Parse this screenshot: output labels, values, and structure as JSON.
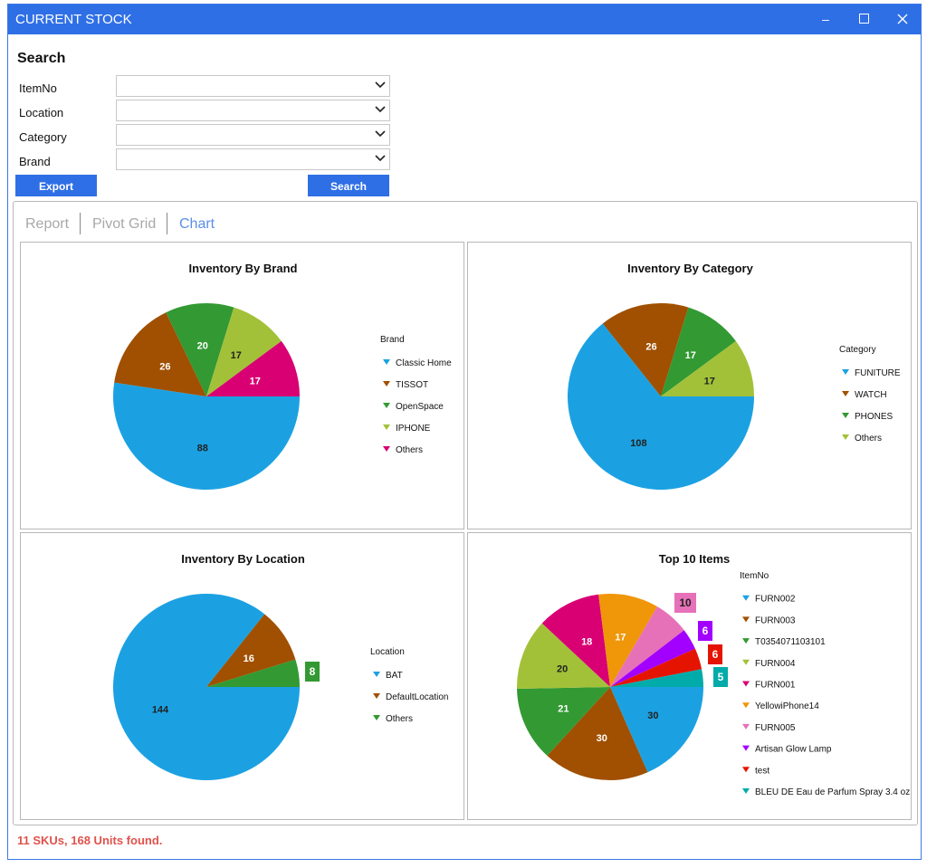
{
  "window": {
    "title": "CURRENT STOCK",
    "title_color": "#2f6fe6"
  },
  "search": {
    "heading": "Search",
    "fields": [
      {
        "label": "ItemNo",
        "value": ""
      },
      {
        "label": "Location",
        "value": ""
      },
      {
        "label": "Category",
        "value": ""
      },
      {
        "label": "Brand",
        "value": ""
      }
    ],
    "export_label": "Export",
    "search_label": "Search"
  },
  "tabs": [
    {
      "label": "Report",
      "active": false
    },
    {
      "label": "Pivot Grid",
      "active": false
    },
    {
      "label": "Chart",
      "active": true
    }
  ],
  "status": "11 SKUs, 168 Units found.",
  "chart_data": [
    {
      "type": "pie",
      "title": "Inventory By Brand",
      "legend_title": "Brand",
      "legend_position": "right",
      "categories": [
        "Classic Home",
        "TISSOT",
        "OpenSpace",
        "IPHONE",
        "Others"
      ],
      "values": [
        88,
        26,
        20,
        17,
        17
      ],
      "colors": [
        "#1ba1e2",
        "#a05000",
        "#339933",
        "#a2c139",
        "#d80073"
      ]
    },
    {
      "type": "pie",
      "title": "Inventory By Category",
      "legend_title": "Category",
      "legend_position": "right",
      "categories": [
        "FUNITURE",
        "WATCH",
        "PHONES",
        "Others"
      ],
      "values": [
        108,
        26,
        17,
        17
      ],
      "colors": [
        "#1ba1e2",
        "#a05000",
        "#339933",
        "#a2c139"
      ]
    },
    {
      "type": "pie",
      "title": "Inventory By Location",
      "legend_title": "Location",
      "legend_position": "right",
      "categories": [
        "BAT",
        "DefaultLocation",
        "Others"
      ],
      "values": [
        144,
        16,
        8
      ],
      "colors": [
        "#1ba1e2",
        "#a05000",
        "#339933"
      ]
    },
    {
      "type": "pie",
      "title": "Top 10 Items",
      "legend_title": "ItemNo",
      "legend_position": "right",
      "categories": [
        "FURN002",
        "FURN003",
        "T0354071103101",
        "FURN004",
        "FURN001",
        "YellowiPhone14",
        "FURN005",
        "Artisan Glow Lamp",
        "test",
        "BLEU DE Eau de Parfum Spray 3.4 oz"
      ],
      "values": [
        30,
        30,
        21,
        20,
        18,
        17,
        10,
        6,
        6,
        5
      ],
      "colors": [
        "#1ba1e2",
        "#a05000",
        "#339933",
        "#a2c139",
        "#d80073",
        "#f09609",
        "#e671b8",
        "#a200ff",
        "#e51400",
        "#00aba9"
      ]
    }
  ]
}
